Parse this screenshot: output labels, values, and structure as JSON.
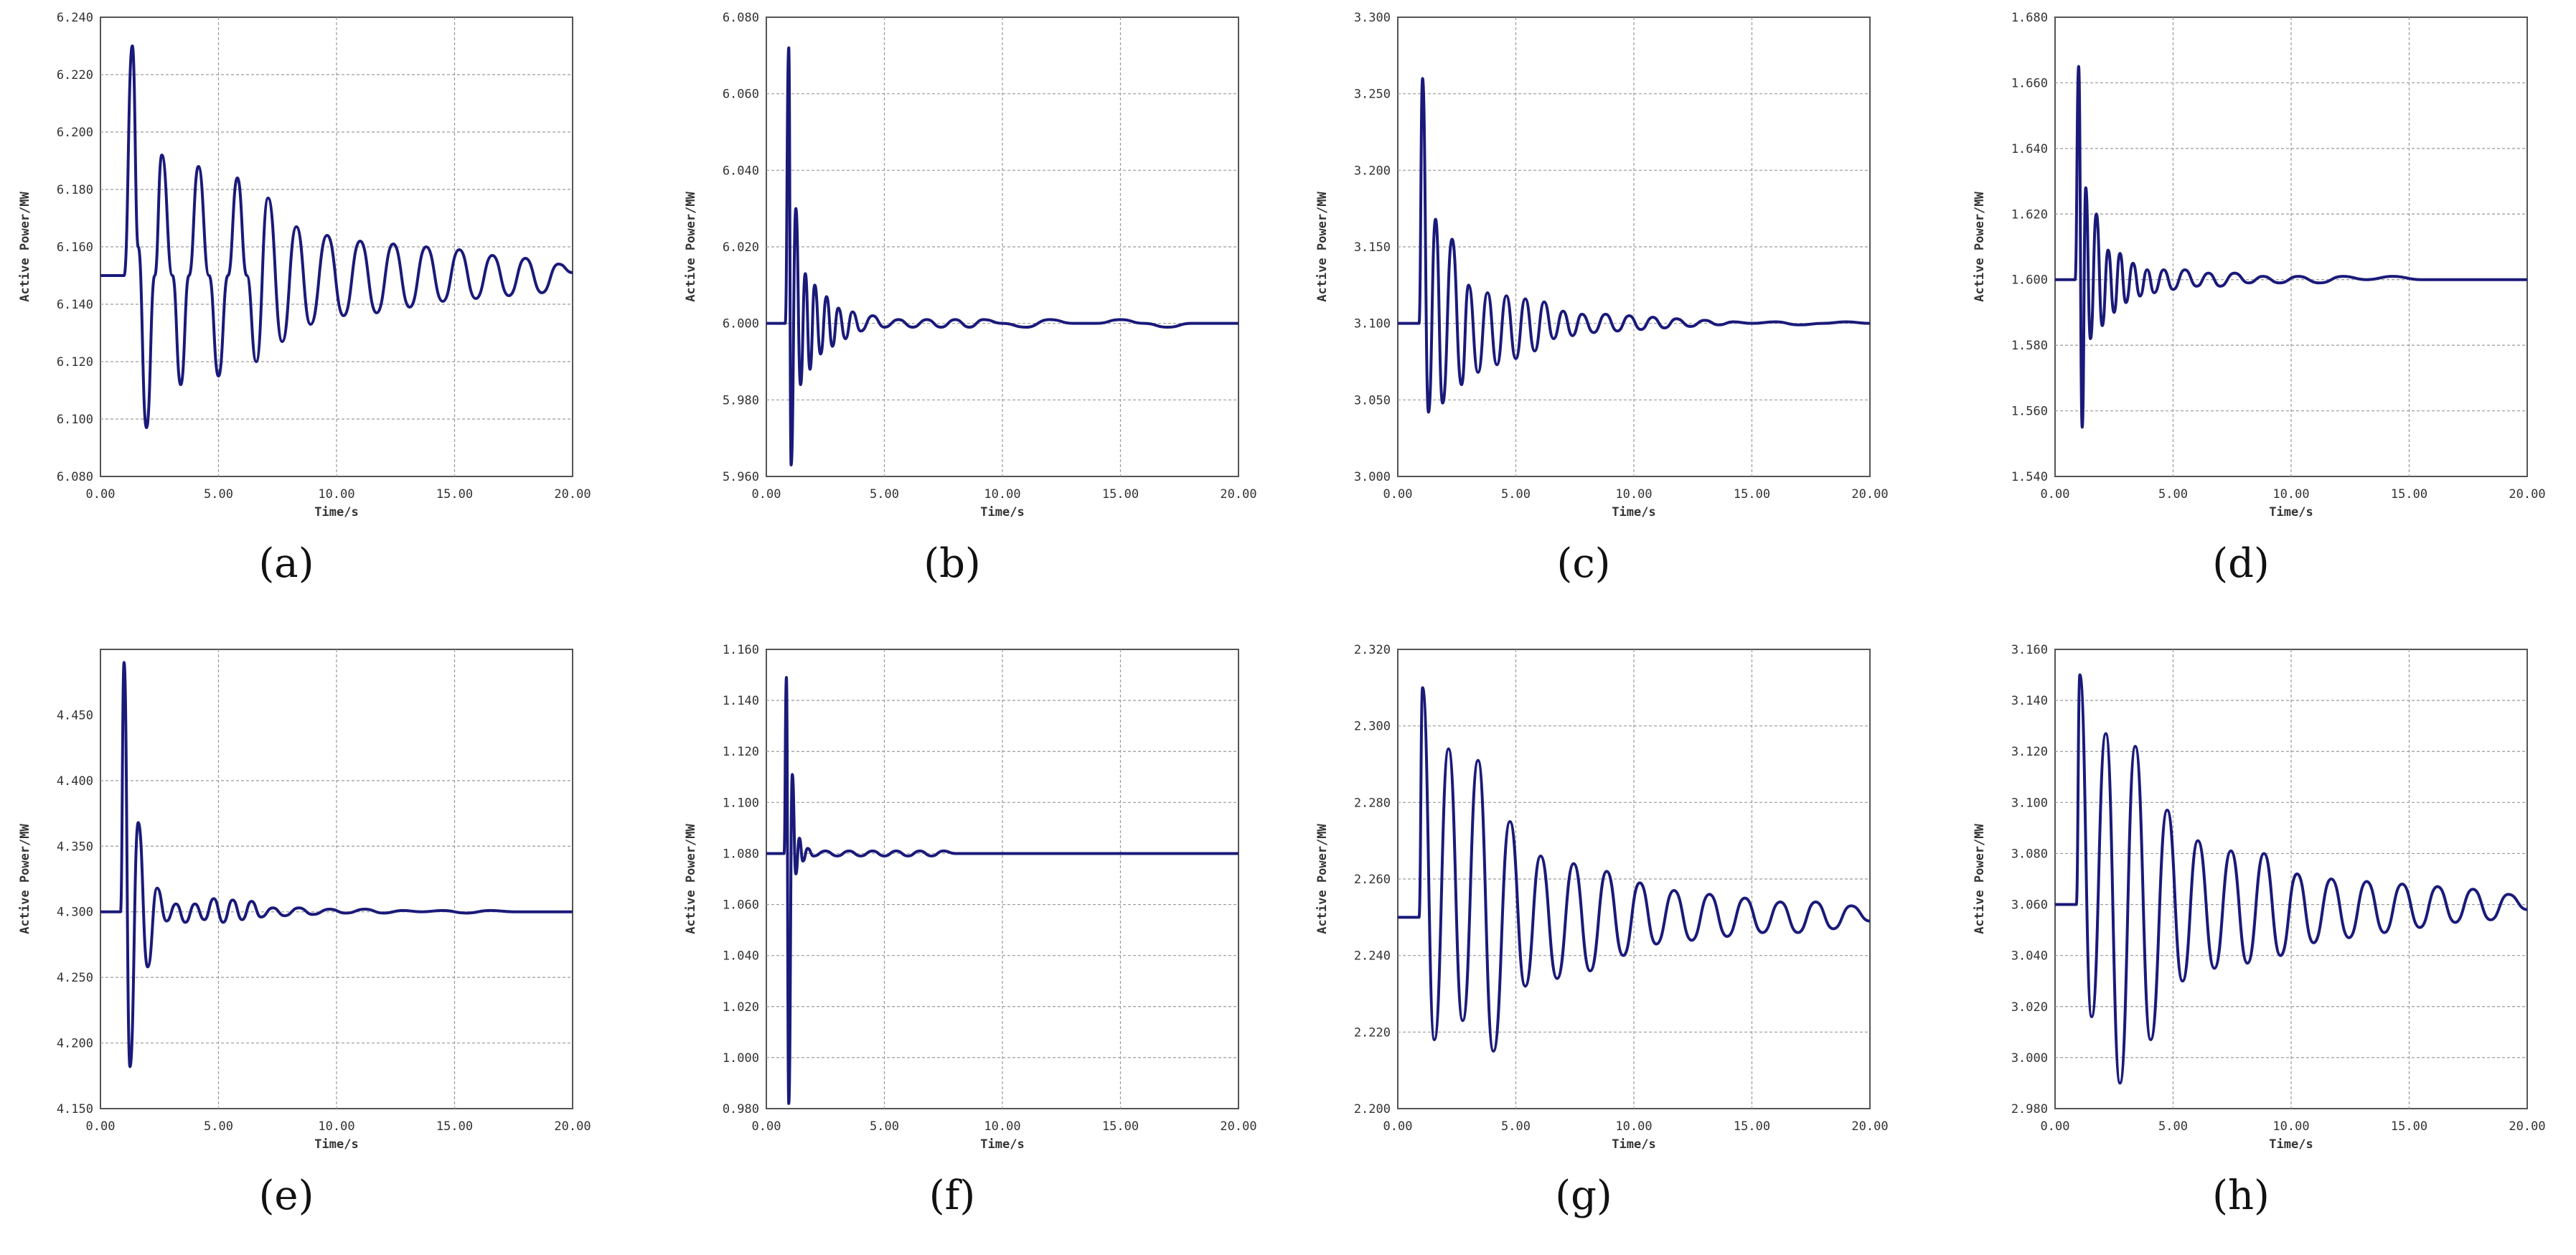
{
  "figure": {
    "common": {
      "xlabel": "Time/s",
      "ylabel": "Active Power/MW",
      "x_ticks": [
        "0.00",
        "5.00",
        "10.00",
        "15.00",
        "20.00"
      ],
      "line_color": "#1a1a7a",
      "grid_color": "#9a9a9a"
    }
  },
  "chart_data": [
    {
      "type": "line",
      "panel": "(a)",
      "xlabel": "Time/s",
      "ylabel": "Active Power/MW",
      "xlim": [
        0,
        20
      ],
      "ylim": [
        6.08,
        6.24
      ],
      "y_ticks": [
        "6.080",
        "6.100",
        "6.120",
        "6.140",
        "6.160",
        "6.180",
        "6.200",
        "6.220",
        "6.240"
      ],
      "grid": true,
      "series": [
        {
          "x": [
            0,
            1,
            1.35,
            1.6,
            1.95,
            2.3,
            2.6,
            3.05,
            3.4,
            3.75,
            4.15,
            4.6,
            5.0,
            5.4,
            5.8,
            6.2,
            6.6,
            7.1,
            7.7,
            8.3,
            8.9,
            9.6,
            10.3,
            11.0,
            11.7,
            12.4,
            13.1,
            13.8,
            14.5,
            15.2,
            15.9,
            16.6,
            17.3,
            18.0,
            18.7,
            19.4,
            20.0
          ],
          "y": [
            6.15,
            6.15,
            6.23,
            6.16,
            6.097,
            6.15,
            6.192,
            6.15,
            6.112,
            6.15,
            6.188,
            6.15,
            6.115,
            6.15,
            6.184,
            6.15,
            6.12,
            6.177,
            6.127,
            6.167,
            6.133,
            6.164,
            6.136,
            6.162,
            6.137,
            6.161,
            6.139,
            6.16,
            6.141,
            6.159,
            6.142,
            6.157,
            6.143,
            6.156,
            6.144,
            6.154,
            6.151
          ]
        }
      ]
    },
    {
      "type": "line",
      "panel": "(b)",
      "xlabel": "Time/s",
      "ylabel": "Active Power/MW",
      "xlim": [
        0,
        20
      ],
      "ylim": [
        5.96,
        6.08
      ],
      "y_ticks": [
        "5.960",
        "5.980",
        "6.000",
        "6.020",
        "6.040",
        "6.060",
        "6.080"
      ],
      "grid": true,
      "series": [
        {
          "x": [
            0,
            0.8,
            0.95,
            1.05,
            1.25,
            1.45,
            1.65,
            1.85,
            2.05,
            2.3,
            2.55,
            2.8,
            3.05,
            3.35,
            3.65,
            4.0,
            4.5,
            5.0,
            5.6,
            6.2,
            6.8,
            7.4,
            8.0,
            8.6,
            9.2,
            10.0,
            11.0,
            12.0,
            13.0,
            14.0,
            15.0,
            16.0,
            17.0,
            18.0,
            19.0,
            20.0
          ],
          "y": [
            6.0,
            6.0,
            6.072,
            5.963,
            6.03,
            5.984,
            6.013,
            5.988,
            6.01,
            5.992,
            6.007,
            5.994,
            6.004,
            5.996,
            6.003,
            5.998,
            6.002,
            5.999,
            6.001,
            5.999,
            6.001,
            5.999,
            6.001,
            5.999,
            6.001,
            6.0,
            5.999,
            6.001,
            6.0,
            6.0,
            6.001,
            6.0,
            5.999,
            6.0,
            6.0,
            6.0
          ]
        }
      ]
    },
    {
      "type": "line",
      "panel": "(c)",
      "xlabel": "Time/s",
      "ylabel": "Active Power/MW",
      "xlim": [
        0,
        20
      ],
      "ylim": [
        3.0,
        3.3
      ],
      "y_ticks": [
        "3.000",
        "3.050",
        "3.100",
        "3.150",
        "3.200",
        "3.250",
        "3.300"
      ],
      "grid": true,
      "series": [
        {
          "x": [
            0,
            0.9,
            1.05,
            1.3,
            1.6,
            1.9,
            2.3,
            2.7,
            3.0,
            3.4,
            3.8,
            4.2,
            4.6,
            5.0,
            5.4,
            5.8,
            6.2,
            6.6,
            7.0,
            7.4,
            7.8,
            8.3,
            8.8,
            9.3,
            9.8,
            10.3,
            10.8,
            11.3,
            11.8,
            12.4,
            13.0,
            13.6,
            14.2,
            15.0,
            16.0,
            17.0,
            18.0,
            19.0,
            20.0
          ],
          "y": [
            3.1,
            3.1,
            3.26,
            3.042,
            3.168,
            3.048,
            3.155,
            3.06,
            3.125,
            3.068,
            3.12,
            3.073,
            3.118,
            3.077,
            3.116,
            3.082,
            3.114,
            3.09,
            3.108,
            3.092,
            3.106,
            3.094,
            3.106,
            3.095,
            3.105,
            3.096,
            3.104,
            3.097,
            3.103,
            3.098,
            3.102,
            3.099,
            3.101,
            3.1,
            3.101,
            3.099,
            3.1,
            3.101,
            3.1
          ]
        }
      ]
    },
    {
      "type": "line",
      "panel": "(d)",
      "xlabel": "Time/s",
      "ylabel": "Active Power/MW",
      "xlim": [
        0,
        20
      ],
      "ylim": [
        1.54,
        1.68
      ],
      "y_ticks": [
        "1.540",
        "1.560",
        "1.580",
        "1.600",
        "1.620",
        "1.640",
        "1.660",
        "1.680"
      ],
      "grid": true,
      "series": [
        {
          "x": [
            0,
            0.85,
            1.0,
            1.15,
            1.3,
            1.5,
            1.75,
            2.0,
            2.25,
            2.5,
            2.75,
            3.0,
            3.3,
            3.6,
            3.9,
            4.2,
            4.6,
            5.0,
            5.5,
            6.0,
            6.5,
            7.0,
            7.6,
            8.2,
            8.8,
            9.5,
            10.3,
            11.2,
            12.2,
            13.2,
            14.3,
            15.5,
            17.0,
            18.5,
            20.0
          ],
          "y": [
            1.6,
            1.6,
            1.665,
            1.555,
            1.628,
            1.582,
            1.62,
            1.586,
            1.609,
            1.59,
            1.608,
            1.593,
            1.605,
            1.595,
            1.603,
            1.596,
            1.603,
            1.597,
            1.603,
            1.598,
            1.602,
            1.598,
            1.602,
            1.599,
            1.601,
            1.599,
            1.601,
            1.599,
            1.601,
            1.6,
            1.601,
            1.6,
            1.6,
            1.6,
            1.6
          ]
        }
      ]
    },
    {
      "type": "line",
      "panel": "(e)",
      "xlabel": "Time/s",
      "ylabel": "Active Power/MW",
      "xlim": [
        0,
        20
      ],
      "ylim": [
        4.15,
        4.5
      ],
      "y_ticks": [
        "4.150",
        "4.200",
        "4.250",
        "4.300",
        "4.350",
        "4.400",
        "4.450"
      ],
      "grid": true,
      "series": [
        {
          "x": [
            0,
            0.85,
            1.0,
            1.25,
            1.6,
            2.0,
            2.4,
            2.8,
            3.2,
            3.6,
            4.0,
            4.4,
            4.8,
            5.2,
            5.6,
            6.0,
            6.4,
            6.8,
            7.3,
            7.8,
            8.4,
            9.0,
            9.7,
            10.4,
            11.2,
            12.0,
            12.8,
            13.6,
            14.5,
            15.5,
            16.5,
            17.5,
            18.5,
            20.0
          ],
          "y": [
            4.3,
            4.3,
            4.49,
            4.182,
            4.368,
            4.258,
            4.318,
            4.293,
            4.306,
            4.292,
            4.306,
            4.294,
            4.31,
            4.292,
            4.309,
            4.294,
            4.308,
            4.296,
            4.303,
            4.297,
            4.303,
            4.298,
            4.302,
            4.299,
            4.302,
            4.299,
            4.301,
            4.3,
            4.301,
            4.299,
            4.301,
            4.3,
            4.3,
            4.3
          ]
        }
      ]
    },
    {
      "type": "line",
      "panel": "(f)",
      "xlabel": "Time/s",
      "ylabel": "Active Power/MW",
      "xlim": [
        0,
        20
      ],
      "ylim": [
        0.98,
        1.16
      ],
      "y_ticks": [
        "0.980",
        "1.000",
        "1.020",
        "1.040",
        "1.060",
        "1.080",
        "1.100",
        "1.120",
        "1.140",
        "1.160"
      ],
      "grid": true,
      "series": [
        {
          "x": [
            0,
            0.75,
            0.85,
            0.95,
            1.1,
            1.25,
            1.4,
            1.55,
            1.75,
            2.0,
            2.5,
            3.0,
            3.5,
            4.0,
            4.5,
            5.0,
            5.5,
            6.0,
            6.5,
            7.0,
            7.5,
            8.0,
            9.0,
            10.0,
            12.0,
            14.0,
            16.0,
            18.0,
            20.0
          ],
          "y": [
            1.08,
            1.08,
            1.149,
            0.982,
            1.111,
            1.072,
            1.086,
            1.077,
            1.082,
            1.079,
            1.081,
            1.079,
            1.081,
            1.079,
            1.081,
            1.079,
            1.081,
            1.079,
            1.081,
            1.079,
            1.081,
            1.08,
            1.08,
            1.08,
            1.08,
            1.08,
            1.08,
            1.08,
            1.08
          ]
        }
      ]
    },
    {
      "type": "line",
      "panel": "(g)",
      "xlabel": "Time/s",
      "ylabel": "Active Power/MW",
      "xlim": [
        0,
        20
      ],
      "ylim": [
        2.2,
        2.32
      ],
      "y_ticks": [
        "2.200",
        "2.220",
        "2.240",
        "2.260",
        "2.280",
        "2.300",
        "2.320"
      ],
      "grid": true,
      "series": [
        {
          "x": [
            0,
            0.9,
            1.05,
            1.55,
            2.15,
            2.75,
            3.4,
            4.05,
            4.75,
            5.4,
            6.05,
            6.75,
            7.45,
            8.15,
            8.85,
            9.55,
            10.25,
            10.95,
            11.7,
            12.45,
            13.2,
            13.95,
            14.7,
            15.45,
            16.2,
            16.95,
            17.7,
            18.45,
            19.2,
            20.0
          ],
          "y": [
            2.25,
            2.25,
            2.31,
            2.218,
            2.294,
            2.223,
            2.291,
            2.215,
            2.275,
            2.232,
            2.266,
            2.234,
            2.264,
            2.236,
            2.262,
            2.24,
            2.259,
            2.243,
            2.257,
            2.244,
            2.256,
            2.245,
            2.255,
            2.246,
            2.254,
            2.246,
            2.254,
            2.247,
            2.253,
            2.249
          ]
        }
      ]
    },
    {
      "type": "line",
      "panel": "(h)",
      "xlabel": "Time/s",
      "ylabel": "Active Power/MW",
      "xlim": [
        0,
        20
      ],
      "ylim": [
        2.98,
        3.16
      ],
      "y_ticks": [
        "2.980",
        "3.000",
        "3.020",
        "3.040",
        "3.060",
        "3.080",
        "3.100",
        "3.120",
        "3.140",
        "3.160"
      ],
      "grid": true,
      "series": [
        {
          "x": [
            0,
            0.9,
            1.05,
            1.55,
            2.15,
            2.75,
            3.4,
            4.05,
            4.75,
            5.4,
            6.05,
            6.75,
            7.45,
            8.15,
            8.85,
            9.55,
            10.25,
            10.95,
            11.7,
            12.45,
            13.2,
            13.95,
            14.7,
            15.45,
            16.2,
            16.95,
            17.7,
            18.45,
            19.2,
            20.0
          ],
          "y": [
            3.06,
            3.06,
            3.15,
            3.016,
            3.127,
            2.99,
            3.122,
            3.007,
            3.097,
            3.03,
            3.085,
            3.035,
            3.081,
            3.037,
            3.08,
            3.04,
            3.072,
            3.045,
            3.07,
            3.047,
            3.069,
            3.049,
            3.068,
            3.051,
            3.067,
            3.053,
            3.066,
            3.054,
            3.064,
            3.058
          ]
        }
      ]
    }
  ]
}
